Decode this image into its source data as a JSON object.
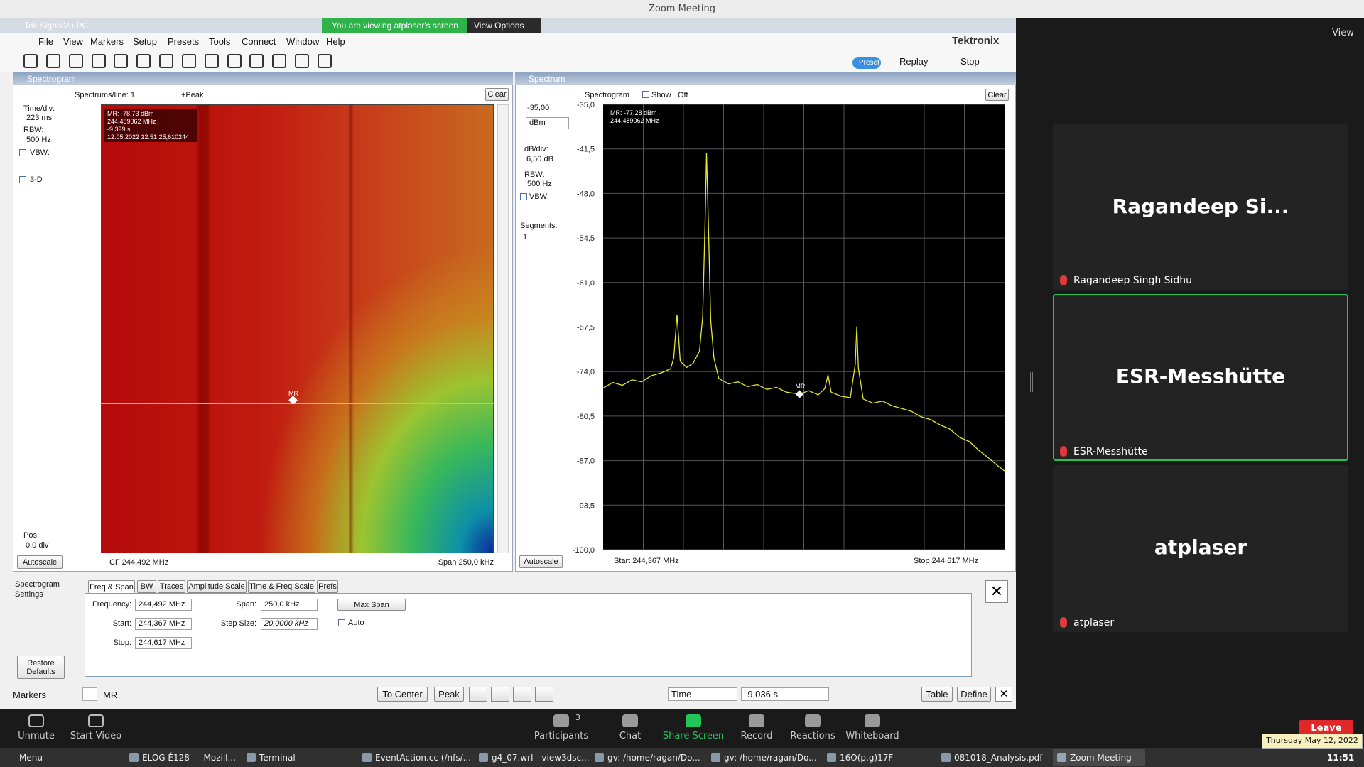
{
  "window": {
    "title": "Zoom Meeting"
  },
  "app": {
    "title": "Tek SignalVu-PC",
    "banner": "You are viewing atplaser's screen",
    "view_options": "View Options",
    "menu": [
      "File",
      "View",
      "Markers",
      "Setup",
      "Presets",
      "Tools",
      "Connect",
      "Window",
      "Help"
    ],
    "brand": "Tektronix",
    "preset": "Preset",
    "replay": "Replay",
    "stop": "Stop"
  },
  "spectrogram": {
    "title": "Spectrogram",
    "spectrums_per_line": "Spectrums/line: 1",
    "detector": "+Peak",
    "clear": "Clear",
    "time_div_label": "Time/div:",
    "time_div": "223 ms",
    "rbw_label": "RBW:",
    "rbw": "500 Hz",
    "vbw": "VBW:",
    "three_d": "3-D",
    "pos_label": "Pos",
    "pos": "0,0 div",
    "autoscale": "Autoscale",
    "cf": "CF  244,492 MHz",
    "span": "Span  250,0 kHz",
    "readout": [
      "MR: -78,73 dBm",
      "244,489062 MHz",
      "-9,399 s",
      "12.05.2022 12:51:25,610244"
    ],
    "marker": "MR"
  },
  "spectrum": {
    "title": "Spectrum",
    "spectrogram_toggle": "Spectrogram",
    "show": "Show",
    "off": "Off",
    "clear": "Clear",
    "ref_level": "-35,00",
    "unit": "dBm",
    "db_div_label": "dB/div:",
    "db_div": "6,50 dB",
    "rbw_label": "RBW:",
    "rbw": "500 Hz",
    "vbw": "VBW:",
    "segments_label": "Segments:",
    "segments": "1",
    "autoscale": "Autoscale",
    "start": "Start   244,367 MHz",
    "stop": "Stop  244,617 MHz",
    "readout": [
      "MR: -77,28 dBm",
      "244,489062 MHz"
    ],
    "marker": "MR",
    "trace": {
      "color": "#e6e62e",
      "xlim": [
        244.367,
        244.617
      ],
      "ylim": [
        -100,
        -35
      ],
      "yticks": [
        {
          "value": -35,
          "label": "-35,0"
        },
        {
          "value": -41.5,
          "label": "-41,5"
        },
        {
          "value": -48,
          "label": "-48,0"
        },
        {
          "value": -54.5,
          "label": "-54,5"
        },
        {
          "value": -61,
          "label": "-61,0"
        },
        {
          "value": -67.5,
          "label": "-67,5"
        },
        {
          "value": -74,
          "label": "-74,0"
        },
        {
          "value": -80.5,
          "label": "-80,5"
        },
        {
          "value": -87,
          "label": "-87,0"
        },
        {
          "value": -93.5,
          "label": "-93,5"
        },
        {
          "value": -100,
          "label": "-100,0"
        }
      ],
      "x": [
        244.367,
        244.373,
        244.379,
        244.385,
        244.391,
        244.397,
        244.403,
        244.409,
        244.411,
        244.413,
        244.415,
        244.419,
        244.423,
        244.427,
        244.429,
        244.4305,
        244.4314,
        244.4325,
        244.434,
        244.436,
        244.439,
        244.445,
        244.451,
        244.457,
        244.463,
        244.469,
        244.475,
        244.481,
        244.4893,
        244.495,
        244.501,
        244.505,
        244.5071,
        244.509,
        244.515,
        244.521,
        244.524,
        244.525,
        244.526,
        244.529,
        244.535,
        244.541,
        244.547,
        244.553,
        244.559,
        244.565,
        244.571,
        244.577,
        244.583,
        244.589,
        244.595,
        244.601,
        244.607,
        244.613,
        244.617
      ],
      "values": [
        -76.4,
        -75.6,
        -76.0,
        -75.2,
        -75.5,
        -74.6,
        -74.2,
        -73.6,
        -72.0,
        -65.7,
        -72.5,
        -73.4,
        -72.8,
        -71.0,
        -66.0,
        -52.0,
        -42.1,
        -52.0,
        -66.5,
        -72.0,
        -75.0,
        -75.8,
        -75.5,
        -76.2,
        -75.9,
        -76.6,
        -76.3,
        -77.0,
        -77.3,
        -76.8,
        -77.4,
        -76.5,
        -74.5,
        -77.0,
        -77.6,
        -77.8,
        -73.0,
        -67.4,
        -73.5,
        -78.0,
        -78.6,
        -78.3,
        -79.0,
        -79.4,
        -79.8,
        -80.6,
        -81.0,
        -81.8,
        -82.4,
        -83.6,
        -84.2,
        -85.5,
        -86.6,
        -87.8,
        -88.5
      ]
    }
  },
  "settings": {
    "label": "Spectrogram Settings",
    "tabs": [
      "Freq & Span",
      "BW",
      "Traces",
      "Amplitude Scale",
      "Time & Freq Scale",
      "Prefs"
    ],
    "frequency_label": "Frequency:",
    "frequency": "244,492 MHz",
    "start_label": "Start:",
    "start": "244,367 MHz",
    "stop_label": "Stop:",
    "stop": "244,617 MHz",
    "span_label": "Span:",
    "span": "250,0 kHz",
    "step_label": "Step Size:",
    "step": "20,0000 kHz",
    "max_span": "Max Span",
    "auto": "Auto",
    "restore": "Restore Defaults"
  },
  "markers": {
    "label": "Markers",
    "marker": "MR",
    "to_center": "To Center",
    "peak": "Peak",
    "time": "Time",
    "time_value": "-9,036 s",
    "table": "Table",
    "define": "Define"
  },
  "meeting": {
    "view": "View",
    "participants": [
      {
        "name": "Ragandeep Si...",
        "label": "Ragandeep Singh Sidhu"
      },
      {
        "name": "ESR-Messhütte",
        "label": "ESR-Messhütte"
      },
      {
        "name": "atplaser",
        "label": "atplaser"
      }
    ]
  },
  "zoom_toolbar": {
    "items": [
      "Unmute",
      "Start Video",
      "Participants",
      "Chat",
      "Share Screen",
      "Record",
      "Reactions",
      "Whiteboard"
    ],
    "participant_count": "3",
    "leave": "Leave",
    "date": "Thursday May 12, 2022"
  },
  "taskbar": {
    "items": [
      "Menu",
      "ELOG É128 — Mozill...",
      "Terminal",
      "EventAction.cc (/nfs/...",
      "g4_07.wrl - view3dsc...",
      "gv: /home/ragan/Do...",
      "gv: /home/ragan/Do...",
      "16O(p,g)17F",
      "081018_Analysis.pdf",
      "Zoom Meeting"
    ],
    "clock": "11:51"
  }
}
